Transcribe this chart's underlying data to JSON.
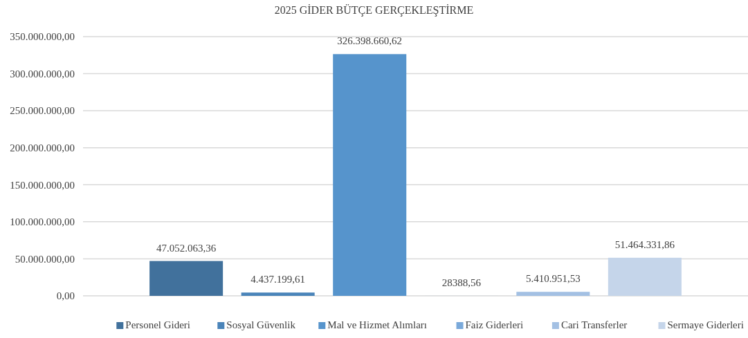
{
  "chart_data": {
    "type": "bar",
    "title": "2025 GİDER BÜTÇE GERÇEKLEŞTİRME",
    "categories": [
      null
    ],
    "series": [
      {
        "name": "Personel Gideri",
        "color": "#41719c",
        "values": [
          47052063.36
        ],
        "value_labels": [
          "47.052.063,36"
        ]
      },
      {
        "name": "Sosyal Güvenlik",
        "color": "#4a84b9",
        "values": [
          4437199.61
        ],
        "value_labels": [
          "4.437.199,61"
        ]
      },
      {
        "name": "Mal ve Hizmet Alımları",
        "color": "#5694cc",
        "values": [
          326398660.62
        ],
        "value_labels": [
          "326.398.660,62"
        ]
      },
      {
        "name": "Faiz Giderleri",
        "color": "#7aa9da",
        "values": [
          28388.56
        ],
        "value_labels": [
          "28388,56"
        ]
      },
      {
        "name": "Cari Transferler",
        "color": "#a3c0e3",
        "values": [
          5410951.53
        ],
        "value_labels": [
          "5.410.951,53"
        ]
      },
      {
        "name": "Sermaye Giderleri",
        "color": "#c5d5ea",
        "values": [
          51464331.86
        ],
        "value_labels": [
          "51.464.331,86"
        ]
      }
    ],
    "ylim": [
      0,
      350000000
    ],
    "yticks": [
      {
        "value": 0,
        "label": "0,00"
      },
      {
        "value": 50000000,
        "label": "50.000.000,00"
      },
      {
        "value": 100000000,
        "label": "100.000.000,00"
      },
      {
        "value": 150000000,
        "label": "150.000.000,00"
      },
      {
        "value": 200000000,
        "label": "200.000.000,00"
      },
      {
        "value": 250000000,
        "label": "250.000.000,00"
      },
      {
        "value": 300000000,
        "label": "300.000.000,00"
      },
      {
        "value": 350000000,
        "label": "350.000.000,00"
      }
    ],
    "grid": "y",
    "legend": "bottom"
  }
}
